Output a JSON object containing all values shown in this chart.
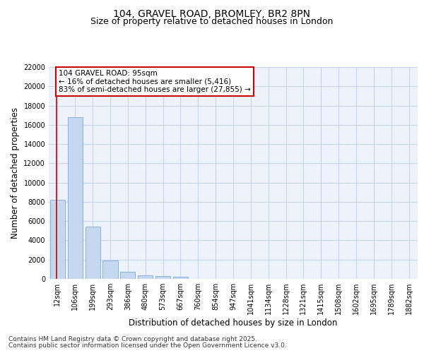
{
  "title_line1": "104, GRAVEL ROAD, BROMLEY, BR2 8PN",
  "title_line2": "Size of property relative to detached houses in London",
  "xlabel": "Distribution of detached houses by size in London",
  "ylabel": "Number of detached properties",
  "categories": [
    "12sqm",
    "106sqm",
    "199sqm",
    "293sqm",
    "386sqm",
    "480sqm",
    "573sqm",
    "667sqm",
    "760sqm",
    "854sqm",
    "947sqm",
    "1041sqm",
    "1134sqm",
    "1228sqm",
    "1321sqm",
    "1415sqm",
    "1508sqm",
    "1602sqm",
    "1695sqm",
    "1789sqm",
    "1882sqm"
  ],
  "values": [
    8200,
    16800,
    5450,
    1900,
    700,
    380,
    260,
    200,
    0,
    0,
    0,
    0,
    0,
    0,
    0,
    0,
    0,
    0,
    0,
    0,
    0
  ],
  "bar_color": "#c5d8f0",
  "bar_edge_color": "#7aaadc",
  "annotation_box_text_line1": "104 GRAVEL ROAD: 95sqm",
  "annotation_box_text_line2": "← 16% of detached houses are smaller (5,416)",
  "annotation_box_text_line3": "83% of semi-detached houses are larger (27,855) →",
  "red_line_color": "#cc0000",
  "box_edge_color": "#cc0000",
  "ylim": [
    0,
    22000
  ],
  "yticks": [
    0,
    2000,
    4000,
    6000,
    8000,
    10000,
    12000,
    14000,
    16000,
    18000,
    20000,
    22000
  ],
  "grid_color": "#c8d4e8",
  "bg_color": "#eef2fa",
  "footer_line1": "Contains HM Land Registry data © Crown copyright and database right 2025.",
  "footer_line2": "Contains public sector information licensed under the Open Government Licence v3.0.",
  "title_fontsize": 10,
  "subtitle_fontsize": 9,
  "tick_fontsize": 7,
  "label_fontsize": 8.5,
  "footer_fontsize": 6.5,
  "annotation_fontsize": 7.5
}
